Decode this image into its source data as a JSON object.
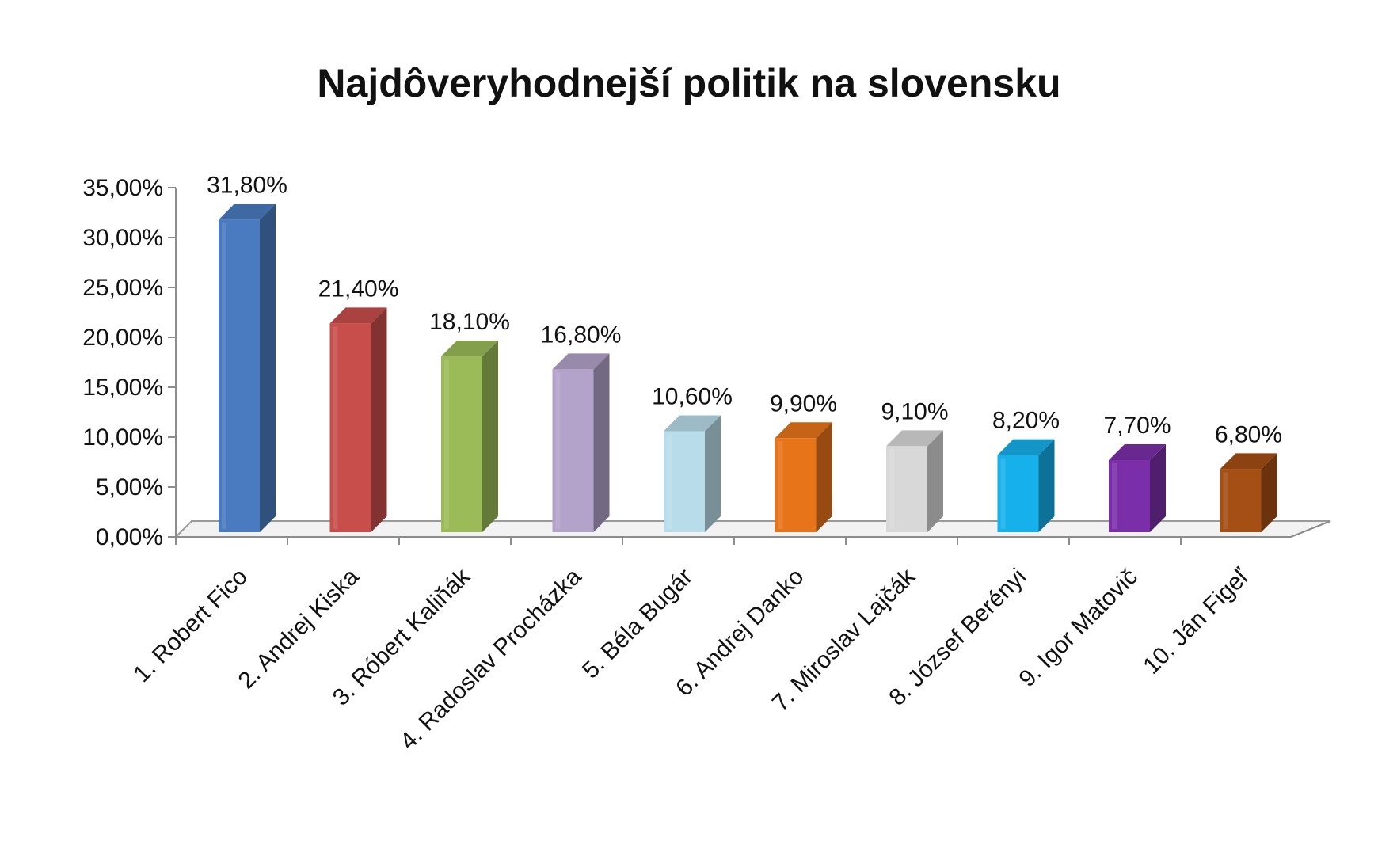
{
  "chart_data": {
    "type": "bar",
    "style": "3d-column",
    "title": "Najdôveryhodnejší politik na slovensku",
    "xlabel": "",
    "ylabel": "",
    "ylim": [
      0,
      35
    ],
    "yticks": [
      0,
      5,
      10,
      15,
      20,
      25,
      30,
      35
    ],
    "ytick_labels": [
      "0,00%",
      "5,00%",
      "10,00%",
      "15,00%",
      "20,00%",
      "25,00%",
      "30,00%",
      "35,00%"
    ],
    "grid": false,
    "legend": "none",
    "categories": [
      "1. Robert Fico",
      "2. Andrej Kiska",
      "3. Róbert Kaliňák",
      "4. Radoslav Procházka",
      "5. Béla Bugár",
      "6. Andrej Danko",
      "7. Miroslav Lajčák",
      "8.  József Berényi",
      "9. Igor Matovič",
      "10. Ján Figeľ"
    ],
    "values": [
      31.8,
      21.4,
      18.1,
      16.8,
      10.6,
      9.9,
      9.1,
      8.2,
      7.7,
      6.8
    ],
    "value_labels": [
      "31,80%",
      "21,40%",
      "18,10%",
      "16,80%",
      "10,60%",
      "9,90%",
      "9,10%",
      "8,20%",
      "7,70%",
      "6,80%"
    ],
    "colors": [
      "#4a7bc0",
      "#c84e4b",
      "#9bbb59",
      "#b3a2c9",
      "#b8dcea",
      "#e8741a",
      "#d8d8d8",
      "#16b0ea",
      "#7a2fa8",
      "#a54f14"
    ]
  }
}
